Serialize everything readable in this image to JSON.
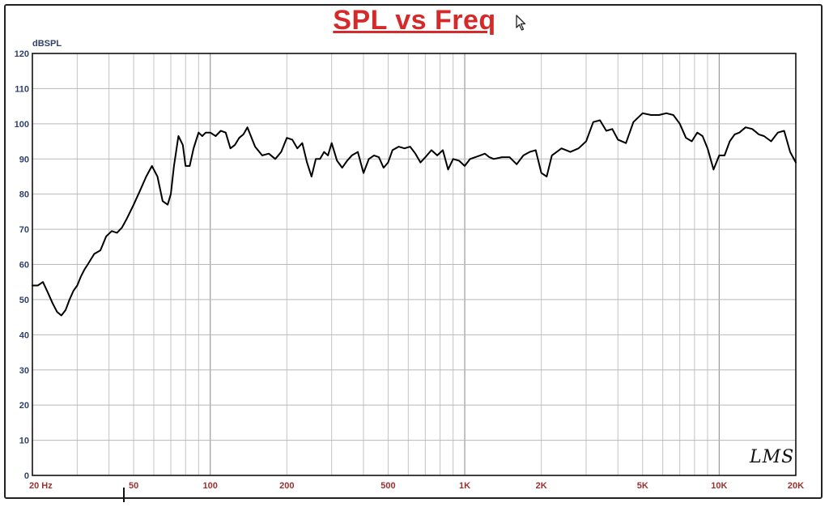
{
  "chart_data": {
    "type": "line",
    "title": "SPL vs Freq",
    "ylabel": "dBSPL",
    "xlabel": "",
    "x_scale": "log",
    "xlim": [
      20,
      20000
    ],
    "ylim": [
      0,
      120
    ],
    "grid": true,
    "y_ticks": [
      0,
      10,
      20,
      30,
      40,
      50,
      60,
      70,
      80,
      90,
      100,
      110,
      120
    ],
    "x_ticks": [
      {
        "value": 20,
        "label": "20  Hz"
      },
      {
        "value": 50,
        "label": "50"
      },
      {
        "value": 100,
        "label": "100"
      },
      {
        "value": 200,
        "label": "200"
      },
      {
        "value": 500,
        "label": "500"
      },
      {
        "value": 1000,
        "label": "1K"
      },
      {
        "value": 2000,
        "label": "2K"
      },
      {
        "value": 5000,
        "label": "5K"
      },
      {
        "value": 10000,
        "label": "10K"
      },
      {
        "value": 20000,
        "label": "20K"
      }
    ],
    "series": [
      {
        "name": "",
        "color": "#000000",
        "x": [
          20,
          21,
          22,
          23,
          24,
          25,
          26,
          27,
          28,
          29,
          30,
          31,
          32,
          33,
          35,
          37,
          39,
          41,
          43,
          45,
          47,
          50,
          53,
          56,
          59,
          62,
          65,
          68,
          70,
          72,
          75,
          78,
          80,
          83,
          86,
          90,
          93,
          96,
          100,
          105,
          110,
          115,
          120,
          125,
          130,
          135,
          140,
          150,
          160,
          170,
          180,
          190,
          200,
          210,
          220,
          230,
          240,
          250,
          260,
          270,
          280,
          290,
          300,
          315,
          330,
          345,
          360,
          380,
          400,
          420,
          440,
          460,
          480,
          500,
          520,
          550,
          580,
          610,
          640,
          670,
          700,
          740,
          780,
          820,
          860,
          900,
          950,
          1000,
          1050,
          1100,
          1150,
          1200,
          1250,
          1300,
          1400,
          1500,
          1600,
          1700,
          1800,
          1900,
          2000,
          2100,
          2200,
          2400,
          2600,
          2800,
          3000,
          3200,
          3400,
          3600,
          3800,
          4000,
          4300,
          4600,
          5000,
          5400,
          5800,
          6200,
          6600,
          7000,
          7400,
          7800,
          8200,
          8600,
          9000,
          9500,
          10000,
          10500,
          11000,
          11500,
          12000,
          12700,
          13500,
          14300,
          15000,
          16000,
          17000,
          18000,
          19000,
          20000
        ],
        "y": [
          54,
          54,
          55,
          52,
          49,
          46.5,
          45.5,
          47,
          50,
          52.5,
          54,
          56.5,
          58.5,
          60,
          63,
          64,
          68,
          69.5,
          69,
          70.5,
          73,
          77,
          81,
          85,
          88,
          85,
          78,
          77,
          80,
          88,
          96.5,
          94,
          88,
          88,
          93,
          97.5,
          96.5,
          97.5,
          97.5,
          96.5,
          98,
          97.5,
          93,
          94,
          96,
          97,
          99,
          93.5,
          91,
          91.5,
          90,
          92,
          96,
          95.5,
          93,
          94.5,
          89,
          85,
          90,
          90,
          92,
          91,
          94.5,
          89.5,
          87.5,
          89.5,
          91,
          92,
          86,
          90,
          91,
          90.5,
          87.5,
          89,
          92.5,
          93.5,
          93,
          93.5,
          91.5,
          89,
          90.5,
          92.5,
          91,
          92.5,
          87,
          90,
          89.5,
          88,
          90,
          90.5,
          91,
          91.5,
          90.5,
          90,
          90.5,
          90.5,
          88.5,
          91,
          92,
          92.5,
          86,
          85,
          91,
          93,
          92,
          93,
          95,
          100.5,
          101,
          98,
          98.5,
          95.5,
          94.5,
          100.5,
          103,
          102.5,
          102.5,
          103,
          102.5,
          100,
          96,
          95,
          97.5,
          96.5,
          93,
          87,
          91,
          91,
          95,
          97,
          97.5,
          99,
          98.5,
          97,
          96.5,
          95,
          97.5,
          98,
          92,
          89
        ]
      }
    ]
  },
  "logo_text": "LMS"
}
